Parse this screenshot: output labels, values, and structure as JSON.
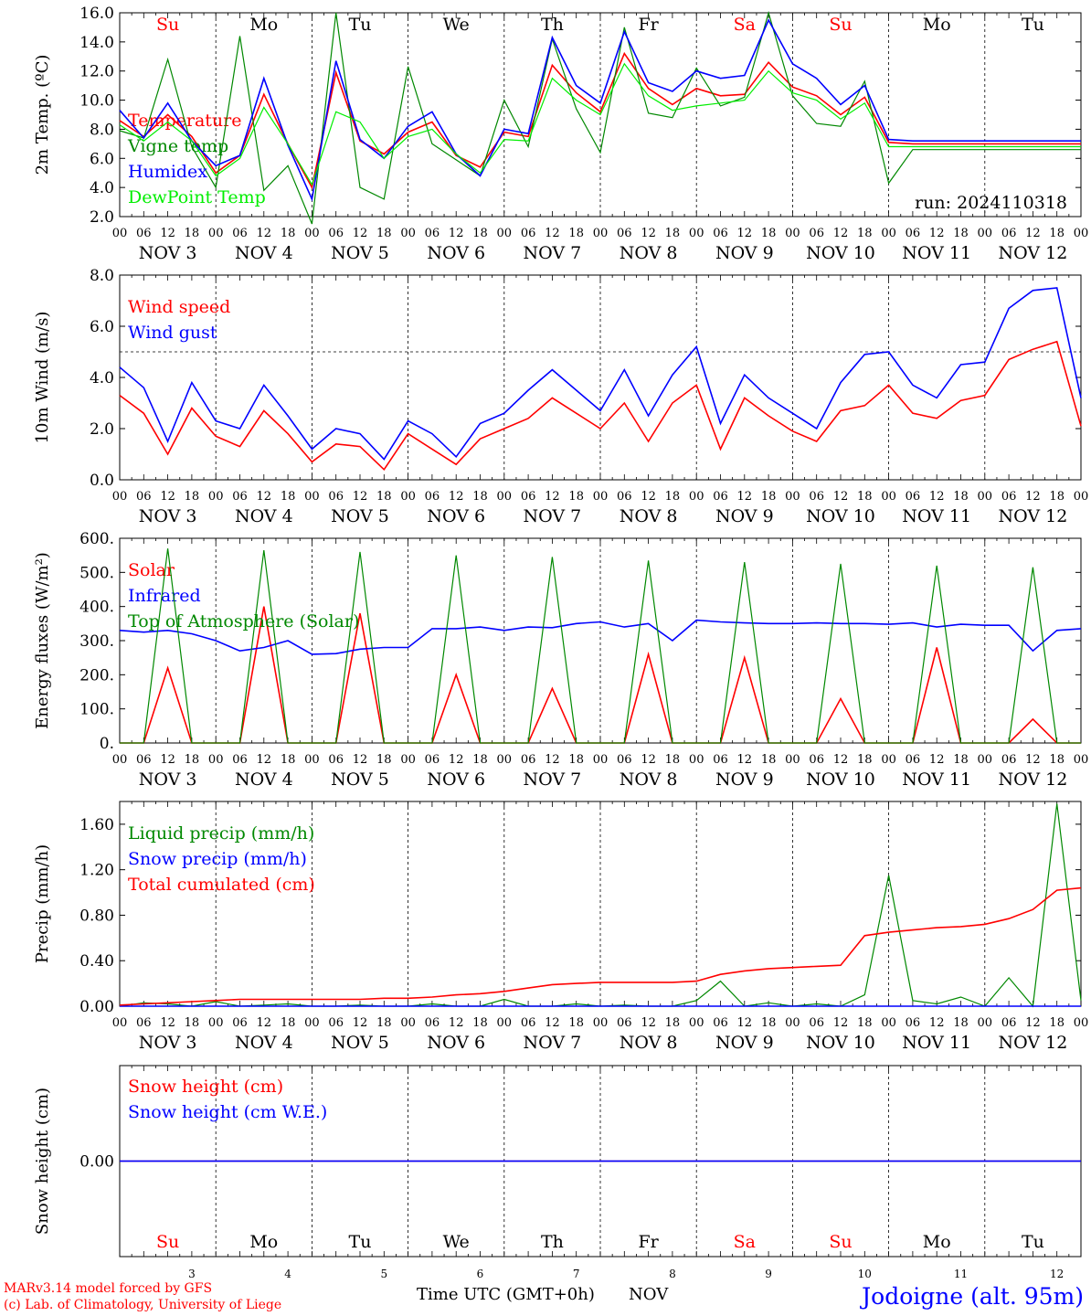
{
  "station": "Jodoigne (alt. 95m)",
  "credits": [
    "MARv3.14 model forced by GFS",
    "(c) Lab. of Climatology, University of Liege"
  ],
  "time_axis_label": "Time UTC (GMT+0h)",
  "month_label": "NOV",
  "run_label": "run: 2024110318",
  "colors": {
    "red": "#ff0000",
    "green": "#008800",
    "blue": "#0000ff",
    "lightgreen": "#00ee00",
    "purple": "#800080"
  },
  "days": [
    {
      "day": "3",
      "wd": "Su",
      "weekend": true
    },
    {
      "day": "4",
      "wd": "Mo",
      "weekend": false
    },
    {
      "day": "5",
      "wd": "Tu",
      "weekend": false
    },
    {
      "day": "6",
      "wd": "We",
      "weekend": false
    },
    {
      "day": "7",
      "wd": "Th",
      "weekend": false
    },
    {
      "day": "8",
      "wd": "Fr",
      "weekend": false
    },
    {
      "day": "9",
      "wd": "Sa",
      "weekend": true
    },
    {
      "day": "10",
      "wd": "Su",
      "weekend": true
    },
    {
      "day": "11",
      "wd": "Mo",
      "weekend": false
    },
    {
      "day": "12",
      "wd": "Tu",
      "weekend": false
    }
  ],
  "hour_ticks": [
    "00",
    "06",
    "12",
    "18"
  ],
  "chart_data": [
    {
      "type": "line",
      "ylabel": "2m Temp. (ºC)",
      "ylim": [
        2,
        16
      ],
      "ytick_labels": [
        "2.0",
        "4.0",
        "6.0",
        "8.0",
        "10.0",
        "12.0",
        "14.0",
        "16.0"
      ],
      "x_hours_from_nov3_00utc": [
        0,
        6,
        12,
        18,
        24,
        30,
        36,
        42,
        48,
        54,
        60,
        66,
        72,
        78,
        84,
        90,
        96,
        102,
        108,
        114,
        120,
        126,
        132,
        138,
        144,
        150,
        156,
        162,
        168,
        174,
        180,
        186,
        192,
        198,
        204,
        210,
        216,
        222,
        228,
        234,
        240
      ],
      "series": [
        {
          "name": "Temperature",
          "color": "red",
          "values": [
            8.6,
            7.5,
            9.0,
            7.5,
            5.0,
            6.2,
            10.4,
            7.0,
            4.0,
            11.9,
            7.2,
            6.3,
            7.8,
            8.5,
            6.2,
            5.4,
            7.8,
            7.5,
            12.4,
            10.5,
            9.2,
            13.2,
            10.8,
            9.7,
            10.8,
            10.3,
            10.4,
            12.6,
            10.9,
            10.3,
            9.0,
            10.2,
            7.1,
            7.0,
            7.0,
            7.0,
            7.0,
            7.0,
            7.0,
            7.0,
            7.0
          ]
        },
        {
          "name": "Vigne temp",
          "color": "green",
          "values": [
            7.9,
            7.4,
            12.8,
            6.8,
            4.0,
            14.4,
            3.8,
            5.5,
            1.5,
            16.0,
            4.0,
            3.2,
            12.3,
            7.0,
            5.9,
            4.8,
            10.0,
            6.8,
            14.2,
            9.4,
            6.4,
            15.0,
            9.1,
            8.8,
            12.2,
            9.6,
            10.2,
            16.0,
            10.3,
            8.4,
            8.2,
            11.3,
            4.3,
            6.6,
            6.6,
            6.6,
            6.6,
            6.6,
            6.6,
            6.6,
            6.6
          ]
        },
        {
          "name": "Humidex",
          "color": "blue",
          "values": [
            9.3,
            7.4,
            9.8,
            7.2,
            5.5,
            6.2,
            11.5,
            6.9,
            3.2,
            12.7,
            7.3,
            6.0,
            8.2,
            9.2,
            6.3,
            4.8,
            8.0,
            7.7,
            14.3,
            11.0,
            9.8,
            14.7,
            11.2,
            10.6,
            12.0,
            11.5,
            11.7,
            15.5,
            12.5,
            11.5,
            9.7,
            11.0,
            7.3,
            7.2,
            7.2,
            7.2,
            7.2,
            7.2,
            7.2,
            7.2,
            7.2
          ]
        },
        {
          "name": "DewPoint Temp",
          "color": "lightgreen",
          "values": [
            8.3,
            7.2,
            8.5,
            7.2,
            4.8,
            6.0,
            9.5,
            7.0,
            4.2,
            9.2,
            8.5,
            6.0,
            7.5,
            8.0,
            6.3,
            5.0,
            7.3,
            7.2,
            11.5,
            10.0,
            9.0,
            12.5,
            10.3,
            9.3,
            9.6,
            9.8,
            10.0,
            12.0,
            10.5,
            10.0,
            8.7,
            9.8,
            6.8,
            6.8,
            6.8,
            6.8,
            6.8,
            6.8,
            6.8,
            6.8,
            6.8
          ]
        }
      ]
    },
    {
      "type": "line",
      "ylabel": "10m Wind (m/s)",
      "ylim": [
        0,
        8
      ],
      "ytick_labels": [
        "0.0",
        "2.0",
        "4.0",
        "6.0",
        "8.0"
      ],
      "reference_line": 5.0,
      "x_hours_from_nov3_00utc": [
        0,
        6,
        12,
        18,
        24,
        30,
        36,
        42,
        48,
        54,
        60,
        66,
        72,
        78,
        84,
        90,
        96,
        102,
        108,
        114,
        120,
        126,
        132,
        138,
        144,
        150,
        156,
        162,
        168,
        174,
        180,
        186,
        192,
        198,
        204,
        210,
        216,
        222,
        228,
        234,
        240
      ],
      "series": [
        {
          "name": "Wind speed",
          "color": "red",
          "values": [
            3.3,
            2.6,
            1.0,
            2.8,
            1.7,
            1.3,
            2.7,
            1.8,
            0.7,
            1.4,
            1.3,
            0.4,
            1.8,
            1.2,
            0.6,
            1.6,
            2.0,
            2.4,
            3.2,
            2.6,
            2.0,
            3.0,
            1.5,
            3.0,
            3.7,
            1.2,
            3.2,
            2.5,
            1.9,
            1.5,
            2.7,
            2.9,
            3.7,
            2.6,
            2.4,
            3.1,
            3.3,
            4.7,
            5.1,
            5.4,
            2.1
          ]
        },
        {
          "name": "Wind gust",
          "color": "blue",
          "values": [
            4.4,
            3.6,
            1.5,
            3.8,
            2.3,
            2.0,
            3.7,
            2.5,
            1.2,
            2.0,
            1.8,
            0.8,
            2.3,
            1.8,
            0.9,
            2.2,
            2.6,
            3.5,
            4.3,
            3.5,
            2.7,
            4.3,
            2.5,
            4.1,
            5.2,
            2.2,
            4.1,
            3.2,
            2.6,
            2.0,
            3.8,
            4.9,
            5.0,
            3.7,
            3.2,
            4.5,
            4.6,
            6.7,
            7.4,
            7.5,
            3.2
          ]
        }
      ]
    },
    {
      "type": "line",
      "ylabel": "Energy fluxes (W/m²)",
      "ylim": [
        0,
        600
      ],
      "ytick_labels": [
        "0.",
        "100.",
        "200.",
        "300.",
        "400.",
        "500.",
        "600."
      ],
      "x_hours_from_nov3_00utc": [
        0,
        6,
        12,
        18,
        24,
        30,
        36,
        42,
        48,
        54,
        60,
        66,
        72,
        78,
        84,
        90,
        96,
        102,
        108,
        114,
        120,
        126,
        132,
        138,
        144,
        150,
        156,
        162,
        168,
        174,
        180,
        186,
        192,
        198,
        204,
        210,
        216,
        222,
        228,
        234,
        240
      ],
      "series": [
        {
          "name": "Solar",
          "color": "red",
          "values": [
            0,
            0,
            220,
            0,
            0,
            0,
            400,
            0,
            0,
            0,
            380,
            0,
            0,
            0,
            200,
            0,
            0,
            0,
            160,
            0,
            0,
            0,
            260,
            0,
            0,
            0,
            250,
            0,
            0,
            0,
            130,
            0,
            0,
            0,
            280,
            0,
            0,
            0,
            70,
            0,
            0
          ]
        },
        {
          "name": "Infrared",
          "color": "blue",
          "values": [
            330,
            325,
            330,
            320,
            300,
            270,
            280,
            300,
            260,
            262,
            275,
            280,
            280,
            335,
            335,
            340,
            330,
            340,
            338,
            350,
            355,
            340,
            350,
            300,
            360,
            355,
            352,
            350,
            350,
            352,
            350,
            350,
            348,
            352,
            340,
            348,
            345,
            345,
            270,
            330,
            335
          ]
        },
        {
          "name": "Top of Atmosphere (Solar)",
          "color": "green",
          "values": [
            0,
            0,
            570,
            0,
            0,
            0,
            565,
            0,
            0,
            0,
            560,
            0,
            0,
            0,
            550,
            0,
            0,
            0,
            545,
            0,
            0,
            0,
            535,
            0,
            0,
            0,
            530,
            0,
            0,
            0,
            525,
            0,
            0,
            0,
            520,
            0,
            0,
            0,
            515,
            0,
            0
          ]
        }
      ]
    },
    {
      "type": "line",
      "ylabel": "Precip (mm/h)",
      "ylim": [
        0,
        1.8
      ],
      "ytick_labels": [
        "0.00",
        "0.40",
        "0.80",
        "1.20",
        "1.60"
      ],
      "x_hours_from_nov3_00utc": [
        0,
        6,
        12,
        18,
        24,
        30,
        36,
        42,
        48,
        54,
        60,
        66,
        72,
        78,
        84,
        90,
        96,
        102,
        108,
        114,
        120,
        126,
        132,
        138,
        144,
        150,
        156,
        162,
        168,
        174,
        180,
        186,
        192,
        198,
        204,
        210,
        216,
        222,
        228,
        234,
        240
      ],
      "series": [
        {
          "name": "Liquid precip (mm/h)",
          "color": "green",
          "values": [
            0.0,
            0.03,
            0.02,
            0.0,
            0.04,
            0.0,
            0.01,
            0.02,
            0.0,
            0.0,
            0.01,
            0.0,
            0.0,
            0.02,
            0.0,
            0.0,
            0.06,
            0.0,
            0.0,
            0.02,
            0.0,
            0.01,
            0.0,
            0.0,
            0.05,
            0.22,
            0.0,
            0.03,
            0.0,
            0.02,
            0.0,
            0.1,
            1.15,
            0.05,
            0.02,
            0.08,
            0.0,
            0.25,
            0.0,
            1.78,
            0.05
          ]
        },
        {
          "name": "Snow precip (mm/h)",
          "color": "blue",
          "values": [
            0,
            0,
            0,
            0,
            0,
            0,
            0,
            0,
            0,
            0,
            0,
            0,
            0,
            0,
            0,
            0,
            0,
            0,
            0,
            0,
            0,
            0,
            0,
            0,
            0,
            0,
            0,
            0,
            0,
            0,
            0,
            0,
            0,
            0,
            0,
            0,
            0,
            0,
            0,
            0,
            0
          ]
        },
        {
          "name": "Total cumulated (cm)",
          "color": "red",
          "values": [
            0.01,
            0.02,
            0.03,
            0.04,
            0.05,
            0.06,
            0.06,
            0.06,
            0.06,
            0.06,
            0.06,
            0.07,
            0.07,
            0.08,
            0.1,
            0.11,
            0.13,
            0.16,
            0.19,
            0.2,
            0.21,
            0.21,
            0.21,
            0.21,
            0.22,
            0.28,
            0.31,
            0.33,
            0.34,
            0.35,
            0.36,
            0.62,
            0.65,
            0.67,
            0.69,
            0.7,
            0.72,
            0.77,
            0.85,
            1.02,
            1.04
          ]
        }
      ]
    },
    {
      "type": "line",
      "ylabel": "Snow height (cm)",
      "ylim": [
        -1,
        1
      ],
      "ytick_labels": [
        "0.00"
      ],
      "x_hours_from_nov3_00utc": [
        0,
        240
      ],
      "series": [
        {
          "name": "Snow height (cm)",
          "color": "red",
          "values": [
            0,
            0
          ]
        },
        {
          "name": "Snow height (cm W.E.)",
          "color": "blue",
          "values": [
            0,
            0
          ]
        }
      ]
    }
  ]
}
